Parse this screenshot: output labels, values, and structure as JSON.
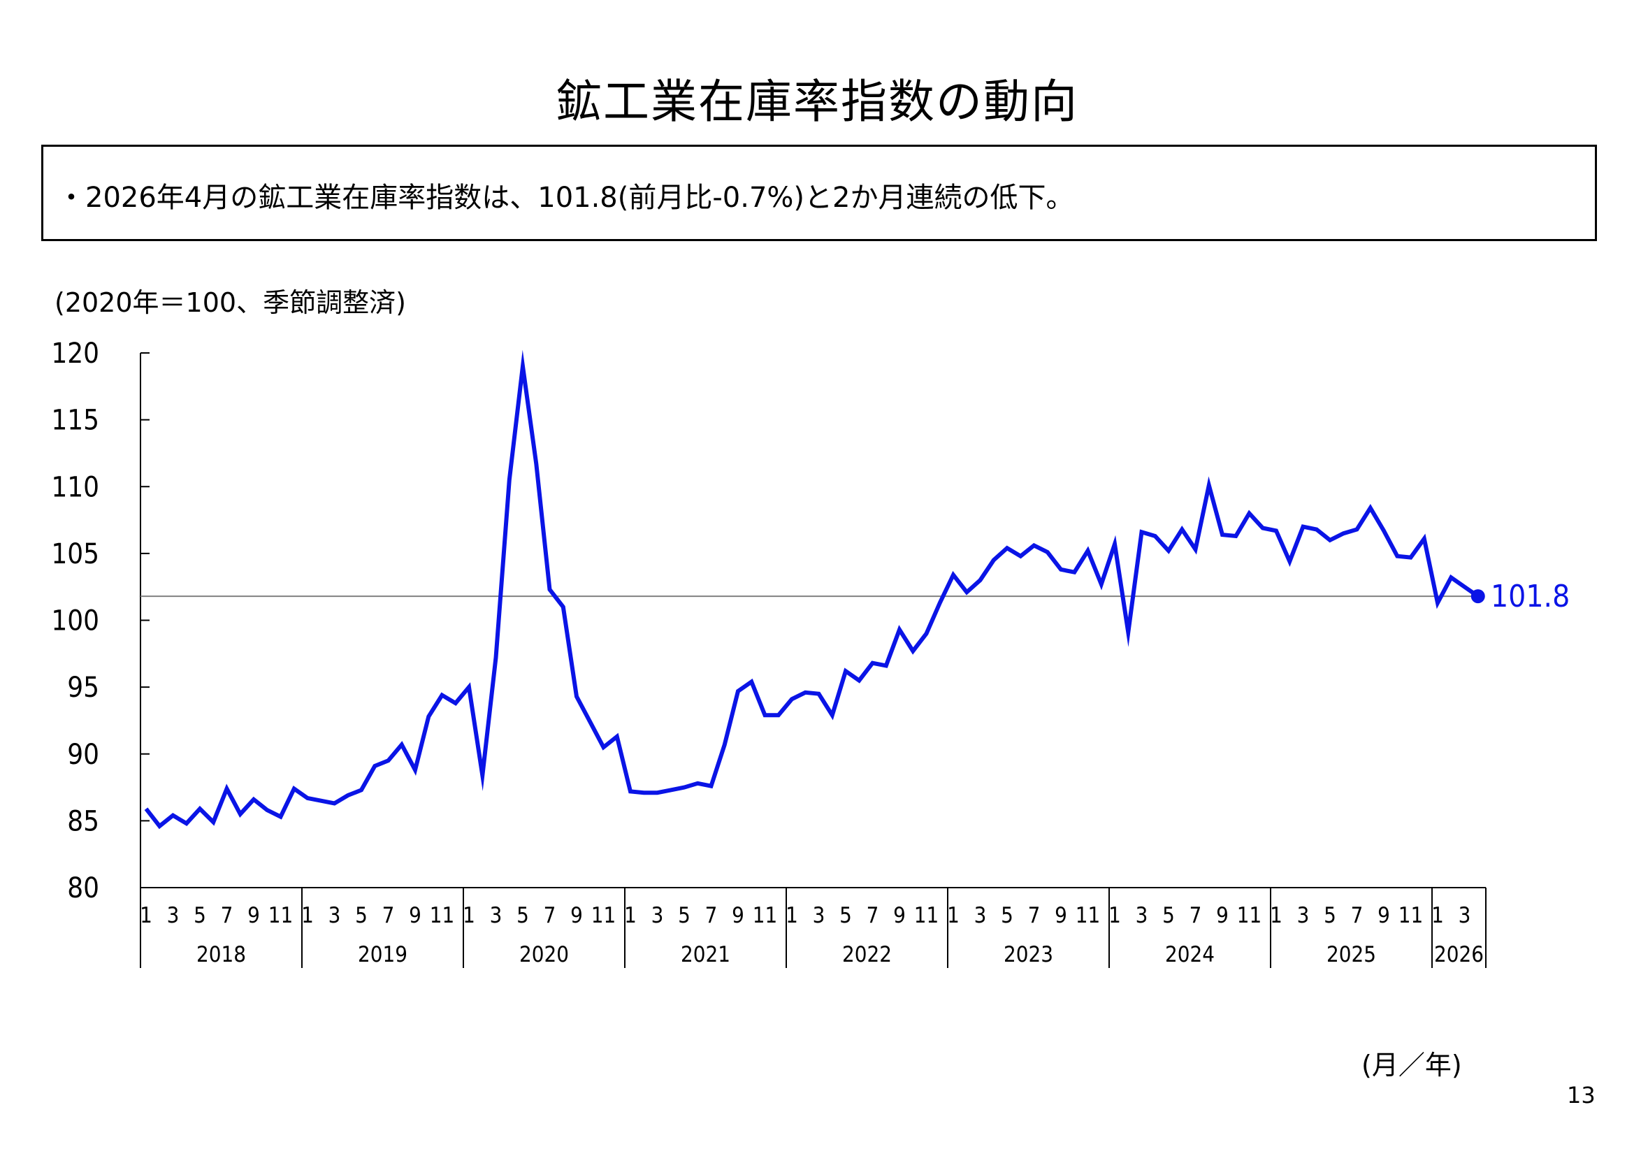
{
  "title": "鉱工業在庫率指数の動向",
  "summary": "・2026年4月の鉱工業在庫率指数は、101.8(前月比-0.7%)と2か月連続の低下。",
  "page_number": "13",
  "chart_data": {
    "type": "line",
    "ylabel": "(2020年＝100、季節調整済)",
    "xlabel": "(月／年)",
    "ylim": [
      80,
      120
    ],
    "yticks": [
      80,
      85,
      90,
      95,
      100,
      105,
      110,
      115,
      120
    ],
    "years": [
      "2018",
      "2019",
      "2020",
      "2021",
      "2022",
      "2023",
      "2024",
      "2025",
      "2026"
    ],
    "month_tick_labels": [
      "1",
      "3",
      "5",
      "7",
      "9",
      "11"
    ],
    "month_tick_labels_2026": [
      "1",
      "3"
    ],
    "reference_line": 101.8,
    "last_value_label": "101.8",
    "colors": {
      "series": "#0a14e6",
      "reference": "#808080",
      "axis": "#000000"
    },
    "series": [
      {
        "values": [
          85.9,
          84.6,
          85.4,
          84.8,
          85.9,
          84.9,
          87.4,
          85.5,
          86.6,
          85.8,
          85.3,
          87.4,
          86.7,
          86.5,
          86.3,
          86.9,
          87.3,
          89.1,
          89.5,
          90.7,
          88.8,
          92.8,
          94.4,
          93.8,
          95.0,
          88.4,
          97.2,
          110.5,
          119.0,
          111.7,
          102.3,
          101.0,
          94.3,
          92.4,
          90.5,
          91.3,
          87.2,
          87.1,
          87.1,
          87.3,
          87.5,
          87.8,
          87.6,
          90.7,
          94.7,
          95.4,
          92.9,
          92.9,
          94.1,
          94.6,
          94.5,
          92.9,
          96.2,
          95.5,
          96.8,
          96.6,
          99.3,
          97.7,
          99.0,
          101.3,
          103.4,
          102.1,
          103.0,
          104.5,
          105.4,
          104.8,
          105.6,
          105.1,
          103.8,
          103.6,
          105.2,
          102.7,
          105.7,
          99.1,
          106.6,
          106.3,
          105.2,
          106.8,
          105.3,
          110.1,
          106.4,
          106.3,
          108.0,
          106.9,
          106.7,
          104.4,
          107.0,
          106.8,
          106.0,
          106.5,
          106.8,
          108.4,
          106.7,
          104.8,
          104.7,
          106.1,
          101.3,
          103.2,
          102.5,
          101.8
        ]
      }
    ]
  }
}
